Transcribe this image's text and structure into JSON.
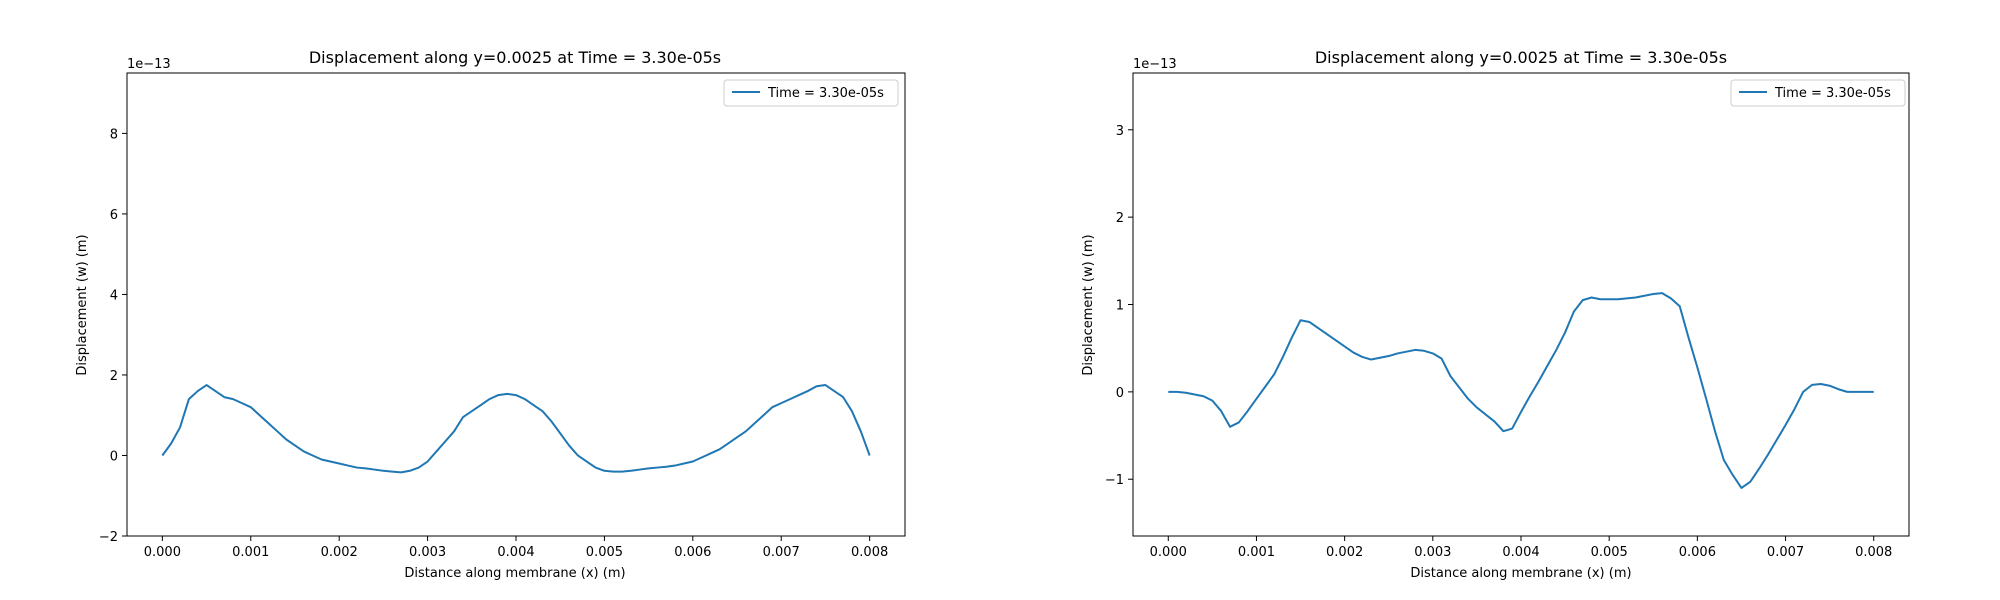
{
  "chart_data": [
    {
      "type": "line",
      "title": "Displacement along y=0.0025 at Time = 3.30e-05s",
      "xlabel": "Distance along membrane (x) (m)",
      "ylabel": "Displacement (w) (m)",
      "y_offset_label": "1e−13",
      "xlim": [
        -0.0004,
        0.0084
      ],
      "ylim": [
        -2,
        9.5
      ],
      "xticks": [
        "0.000",
        "0.001",
        "0.002",
        "0.003",
        "0.004",
        "0.005",
        "0.006",
        "0.007",
        "0.008"
      ],
      "xtick_values": [
        0,
        0.001,
        0.002,
        0.003,
        0.004,
        0.005,
        0.006,
        0.007,
        0.008
      ],
      "yticks": [
        "−2",
        "0",
        "2",
        "4",
        "6",
        "8"
      ],
      "ytick_values": [
        -2,
        0,
        2,
        4,
        6,
        8
      ],
      "grid": false,
      "legend_position": "upper right",
      "series": [
        {
          "name": "Time = 3.30e-05s",
          "color": "#1f77b4",
          "x": [
            0,
            0.0001,
            0.0002,
            0.0003,
            0.0004,
            0.0005,
            0.0006,
            0.0007,
            0.0008,
            0.0009,
            0.001,
            0.0011,
            0.0012,
            0.0013,
            0.0014,
            0.0015,
            0.0016,
            0.0017,
            0.0018,
            0.0019,
            0.002,
            0.0021,
            0.0022,
            0.0023,
            0.0024,
            0.0025,
            0.0026,
            0.0027,
            0.0028,
            0.0029,
            0.003,
            0.0031,
            0.0032,
            0.0033,
            0.0034,
            0.0035,
            0.0036,
            0.0037,
            0.0038,
            0.0039,
            0.004,
            0.0041,
            0.0042,
            0.0043,
            0.0044,
            0.0045,
            0.0046,
            0.0047,
            0.0048,
            0.0049,
            0.005,
            0.0051,
            0.0052,
            0.0053,
            0.0054,
            0.0055,
            0.0056,
            0.0057,
            0.0058,
            0.0059,
            0.006,
            0.0061,
            0.0062,
            0.0063,
            0.0064,
            0.0065,
            0.0066,
            0.0067,
            0.0068,
            0.0069,
            0.007,
            0.0071,
            0.0072,
            0.0073,
            0.0074,
            0.0075,
            0.0076,
            0.0077,
            0.0078,
            0.0079,
            0.008
          ],
          "y": [
            0.0,
            0.3,
            0.7,
            1.4,
            1.6,
            1.75,
            1.6,
            1.45,
            1.4,
            1.3,
            1.2,
            1.0,
            0.8,
            0.6,
            0.4,
            0.25,
            0.1,
            0.0,
            -0.1,
            -0.15,
            -0.2,
            -0.25,
            -0.3,
            -0.32,
            -0.35,
            -0.38,
            -0.4,
            -0.42,
            -0.38,
            -0.3,
            -0.15,
            0.1,
            0.35,
            0.6,
            0.95,
            1.1,
            1.25,
            1.4,
            1.5,
            1.53,
            1.5,
            1.4,
            1.25,
            1.1,
            0.85,
            0.55,
            0.25,
            0.0,
            -0.15,
            -0.3,
            -0.38,
            -0.4,
            -0.4,
            -0.38,
            -0.35,
            -0.32,
            -0.3,
            -0.28,
            -0.25,
            -0.2,
            -0.15,
            -0.05,
            0.05,
            0.15,
            0.3,
            0.45,
            0.6,
            0.8,
            1.0,
            1.2,
            1.3,
            1.4,
            1.5,
            1.6,
            1.72,
            1.75,
            1.6,
            1.45,
            1.1,
            0.6,
            0.0
          ]
        }
      ]
    },
    {
      "type": "line",
      "title": "Displacement along y=0.0025 at Time = 3.30e-05s",
      "xlabel": "Distance along membrane (x) (m)",
      "ylabel": "Displacement (w) (m)",
      "y_offset_label": "1e−13",
      "xlim": [
        -0.0004,
        0.0084
      ],
      "ylim": [
        -1.65,
        3.65
      ],
      "xticks": [
        "0.000",
        "0.001",
        "0.002",
        "0.003",
        "0.004",
        "0.005",
        "0.006",
        "0.007",
        "0.008"
      ],
      "xtick_values": [
        0,
        0.001,
        0.002,
        0.003,
        0.004,
        0.005,
        0.006,
        0.007,
        0.008
      ],
      "yticks": [
        "−1",
        "0",
        "1",
        "2",
        "3"
      ],
      "ytick_values": [
        -1,
        0,
        1,
        2,
        3
      ],
      "grid": false,
      "legend_position": "upper right",
      "series": [
        {
          "name": "Time = 3.30e-05s",
          "color": "#1f77b4",
          "x": [
            0,
            0.0001,
            0.0002,
            0.0003,
            0.0004,
            0.0005,
            0.0006,
            0.0007,
            0.0008,
            0.0009,
            0.001,
            0.0011,
            0.0012,
            0.0013,
            0.0014,
            0.0015,
            0.0016,
            0.0017,
            0.0018,
            0.0019,
            0.002,
            0.0021,
            0.0022,
            0.0023,
            0.0024,
            0.0025,
            0.0026,
            0.0027,
            0.0028,
            0.0029,
            0.003,
            0.0031,
            0.0032,
            0.0033,
            0.0034,
            0.0035,
            0.0036,
            0.0037,
            0.0038,
            0.0039,
            0.004,
            0.0041,
            0.0042,
            0.0043,
            0.0044,
            0.0045,
            0.0046,
            0.0047,
            0.0048,
            0.0049,
            0.005,
            0.0051,
            0.0052,
            0.0053,
            0.0054,
            0.0055,
            0.0056,
            0.0057,
            0.0058,
            0.0059,
            0.006,
            0.0061,
            0.0062,
            0.0063,
            0.0064,
            0.0065,
            0.0066,
            0.0067,
            0.0068,
            0.0069,
            0.007,
            0.0071,
            0.0072,
            0.0073,
            0.0074,
            0.0075,
            0.0076,
            0.0077,
            0.0078,
            0.0079,
            0.008
          ],
          "y": [
            0.0,
            0.0,
            -0.01,
            -0.03,
            -0.05,
            -0.1,
            -0.22,
            -0.4,
            -0.35,
            -0.22,
            -0.08,
            0.06,
            0.2,
            0.4,
            0.62,
            0.82,
            0.8,
            0.73,
            0.66,
            0.59,
            0.52,
            0.45,
            0.4,
            0.37,
            0.39,
            0.41,
            0.44,
            0.46,
            0.48,
            0.47,
            0.44,
            0.38,
            0.18,
            0.05,
            -0.08,
            -0.18,
            -0.26,
            -0.34,
            -0.45,
            -0.42,
            -0.23,
            -0.05,
            0.12,
            0.3,
            0.48,
            0.68,
            0.92,
            1.05,
            1.08,
            1.06,
            1.06,
            1.06,
            1.07,
            1.08,
            1.1,
            1.12,
            1.13,
            1.07,
            0.98,
            0.62,
            0.28,
            -0.08,
            -0.45,
            -0.78,
            -0.95,
            -1.1,
            -1.03,
            -0.88,
            -0.72,
            -0.55,
            -0.38,
            -0.2,
            0.0,
            0.08,
            0.09,
            0.07,
            0.03,
            0.0,
            0.0,
            0.0,
            0.0
          ]
        }
      ]
    }
  ]
}
